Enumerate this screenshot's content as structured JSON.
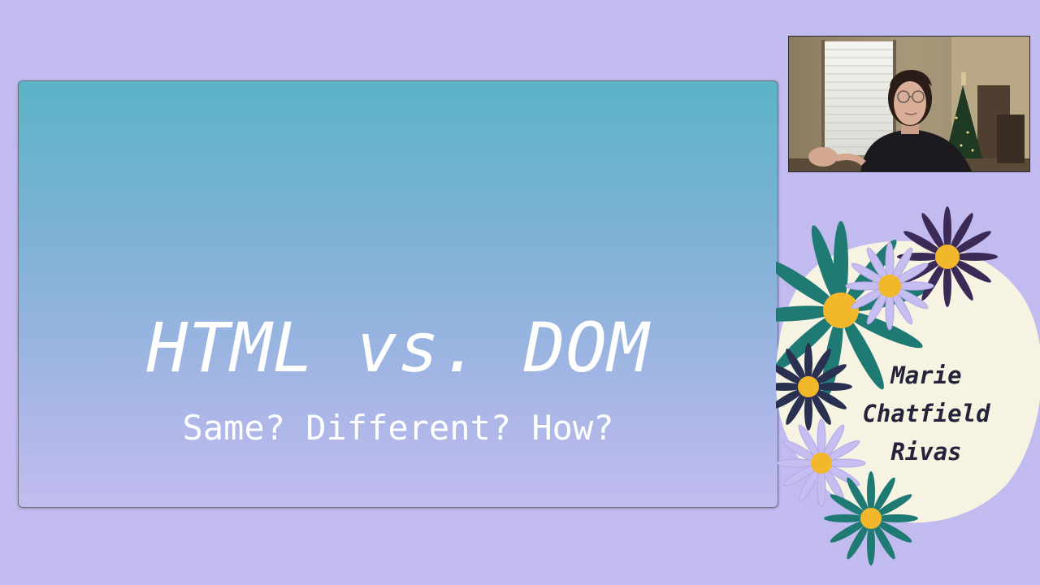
{
  "slide": {
    "title": "HTML vs. DOM",
    "subtitle": "Same? Different? How?"
  },
  "speaker": {
    "name_lines": [
      "Marie",
      "Chatfield",
      "Rivas"
    ]
  },
  "colors": {
    "background": "#c2bbef",
    "slide_top": "#5bb3c7",
    "slide_bottom": "#c2bcef",
    "name_blob": "#f7f3e3",
    "petal_teal": "#1f7a74",
    "petal_dark_purple": "#3a2a55",
    "petal_navy": "#2a3050",
    "petal_lavender": "#c6bdf0",
    "flower_center": "#f2b72b"
  },
  "icons": {
    "webcam": "presenter-video-feed",
    "decoration": "daisy-flower-icon"
  }
}
